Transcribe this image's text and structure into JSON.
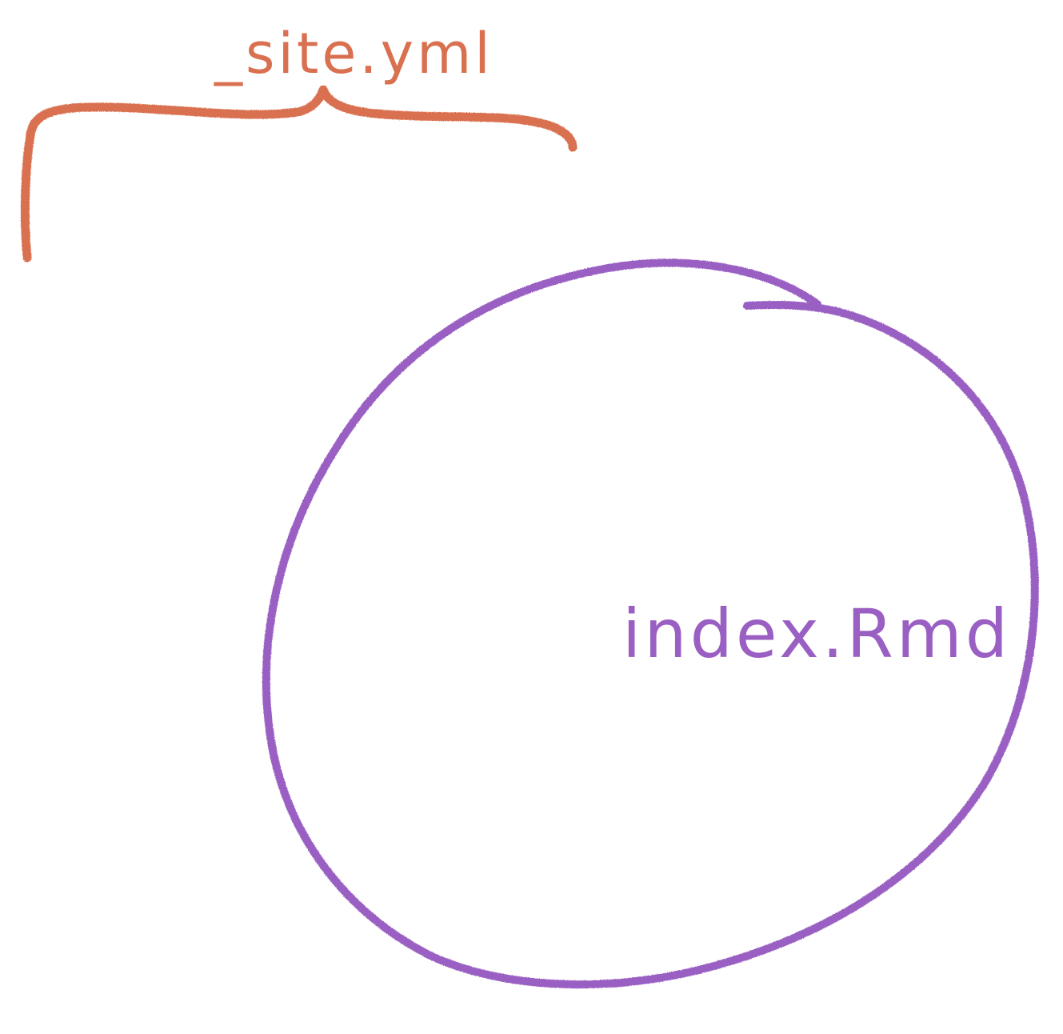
{
  "diagram": {
    "site_config": {
      "label": "_site.yml",
      "color": "#d9704f"
    },
    "index_page": {
      "label": "index.Rmd",
      "color": "#9a5fc2"
    }
  },
  "background": "#ffffff"
}
